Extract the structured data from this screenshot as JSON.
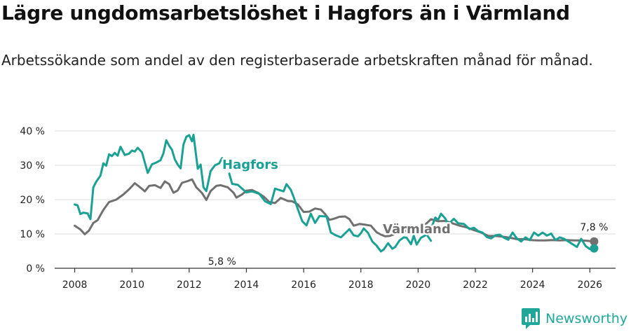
{
  "title": "Lägre ungdomsarbetslöshet i Hagfors än i Värmland",
  "subtitle": "Arbetssökande som andel av den registerbaserade arbetskraften månad för månad.",
  "brand": {
    "name": "Newsworthy",
    "icon": "newsworthy-logo-icon",
    "color": "#1fa89a"
  },
  "chart_data": {
    "type": "line",
    "title": "",
    "xlabel": "",
    "ylabel": "",
    "xlim": [
      2007.3,
      2026.9
    ],
    "ylim": [
      0,
      40
    ],
    "x_ticks": [
      {
        "value": 2008,
        "label": "2008"
      },
      {
        "value": 2010,
        "label": "2010"
      },
      {
        "value": 2012,
        "label": "2012"
      },
      {
        "value": 2014,
        "label": "2014"
      },
      {
        "value": 2016,
        "label": "2016"
      },
      {
        "value": 2018,
        "label": "2018"
      },
      {
        "value": 2020,
        "label": "2020"
      },
      {
        "value": 2022,
        "label": "2022"
      },
      {
        "value": 2024,
        "label": "2024"
      },
      {
        "value": 2026,
        "label": "2026"
      }
    ],
    "y_ticks": [
      {
        "value": 0,
        "label": "0 %"
      },
      {
        "value": 10,
        "label": "10 %"
      },
      {
        "value": 20,
        "label": "20 %"
      },
      {
        "value": 30,
        "label": "30 %"
      },
      {
        "value": 40,
        "label": "40 %"
      }
    ],
    "grid": "horizontal",
    "series": [
      {
        "name": "Värmland",
        "label": "Värmland",
        "color": "#707070",
        "end_label": "7,8 %",
        "end_value": 7.8,
        "points": [
          [
            2008.0,
            12.4
          ],
          [
            2008.2,
            11.3
          ],
          [
            2008.35,
            9.9
          ],
          [
            2008.5,
            11.0
          ],
          [
            2008.65,
            13.2
          ],
          [
            2008.8,
            14.0
          ],
          [
            2009.0,
            17.0
          ],
          [
            2009.2,
            19.3
          ],
          [
            2009.45,
            20.0
          ],
          [
            2009.7,
            21.5
          ],
          [
            2009.9,
            23.0
          ],
          [
            2010.1,
            24.8
          ],
          [
            2010.3,
            23.5
          ],
          [
            2010.45,
            22.4
          ],
          [
            2010.6,
            24.0
          ],
          [
            2010.8,
            24.2
          ],
          [
            2011.0,
            23.4
          ],
          [
            2011.15,
            25.3
          ],
          [
            2011.3,
            24.5
          ],
          [
            2011.45,
            22.0
          ],
          [
            2011.6,
            22.7
          ],
          [
            2011.75,
            24.9
          ],
          [
            2011.95,
            25.4
          ],
          [
            2012.1,
            25.9
          ],
          [
            2012.25,
            23.6
          ],
          [
            2012.45,
            21.9
          ],
          [
            2012.6,
            19.9
          ],
          [
            2012.75,
            22.5
          ],
          [
            2012.95,
            24.0
          ],
          [
            2013.1,
            24.2
          ],
          [
            2013.35,
            23.6
          ],
          [
            2013.55,
            22.0
          ],
          [
            2013.65,
            20.6
          ],
          [
            2013.85,
            21.5
          ],
          [
            2014.0,
            22.6
          ],
          [
            2014.2,
            22.8
          ],
          [
            2014.4,
            22.0
          ],
          [
            2014.6,
            20.9
          ],
          [
            2014.8,
            19.3
          ],
          [
            2015.0,
            19.0
          ],
          [
            2015.2,
            20.5
          ],
          [
            2015.45,
            19.6
          ],
          [
            2015.6,
            19.5
          ],
          [
            2015.8,
            18.6
          ],
          [
            2016.0,
            16.4
          ],
          [
            2016.2,
            16.5
          ],
          [
            2016.4,
            17.4
          ],
          [
            2016.6,
            17.1
          ],
          [
            2016.75,
            15.8
          ],
          [
            2016.9,
            14.1
          ],
          [
            2017.05,
            14.4
          ],
          [
            2017.25,
            15.0
          ],
          [
            2017.45,
            15.1
          ],
          [
            2017.6,
            14.3
          ],
          [
            2017.75,
            12.4
          ],
          [
            2017.95,
            12.9
          ],
          [
            2018.15,
            12.7
          ],
          [
            2018.35,
            12.4
          ],
          [
            2018.55,
            10.5
          ],
          [
            2018.7,
            9.8
          ],
          [
            2018.85,
            9.3
          ],
          [
            2019.0,
            9.4
          ],
          [
            2019.2,
            10.0
          ],
          [
            2019.45,
            10.9
          ],
          [
            2019.7,
            10.9
          ],
          [
            2019.95,
            11.1
          ],
          [
            2020.2,
            12.3
          ],
          [
            2020.45,
            14.3
          ],
          [
            2020.7,
            13.7
          ],
          [
            2020.95,
            13.8
          ],
          [
            2021.2,
            13.1
          ],
          [
            2021.45,
            12.4
          ],
          [
            2021.7,
            11.9
          ],
          [
            2021.95,
            11.1
          ],
          [
            2022.2,
            10.4
          ],
          [
            2022.45,
            9.4
          ],
          [
            2022.7,
            9.4
          ],
          [
            2022.95,
            9.2
          ],
          [
            2023.2,
            8.9
          ],
          [
            2023.45,
            8.5
          ],
          [
            2023.7,
            8.5
          ],
          [
            2023.95,
            8.2
          ],
          [
            2024.2,
            8.1
          ],
          [
            2024.45,
            8.1
          ],
          [
            2024.7,
            8.2
          ],
          [
            2024.95,
            8.1
          ],
          [
            2025.2,
            8.2
          ],
          [
            2025.45,
            8.1
          ],
          [
            2025.7,
            8.1
          ],
          [
            2025.9,
            8.0
          ],
          [
            2026.15,
            7.8
          ]
        ]
      },
      {
        "name": "Hagfors",
        "label": "Hagfors",
        "color": "#1aa193",
        "end_label": "5,8 %",
        "end_value": 5.8,
        "points": [
          [
            2008.0,
            18.6
          ],
          [
            2008.1,
            18.3
          ],
          [
            2008.2,
            15.8
          ],
          [
            2008.3,
            16.2
          ],
          [
            2008.45,
            16.0
          ],
          [
            2008.55,
            14.3
          ],
          [
            2008.65,
            23.6
          ],
          [
            2008.75,
            25.2
          ],
          [
            2008.9,
            27.0
          ],
          [
            2009.0,
            30.6
          ],
          [
            2009.1,
            29.9
          ],
          [
            2009.2,
            33.2
          ],
          [
            2009.3,
            32.7
          ],
          [
            2009.4,
            33.6
          ],
          [
            2009.5,
            32.8
          ],
          [
            2009.6,
            35.4
          ],
          [
            2009.75,
            33.0
          ],
          [
            2009.9,
            33.4
          ],
          [
            2010.0,
            34.3
          ],
          [
            2010.1,
            34.0
          ],
          [
            2010.2,
            35.1
          ],
          [
            2010.35,
            33.8
          ],
          [
            2010.45,
            30.8
          ],
          [
            2010.55,
            27.8
          ],
          [
            2010.7,
            30.3
          ],
          [
            2010.85,
            30.8
          ],
          [
            2011.0,
            31.5
          ],
          [
            2011.1,
            33.5
          ],
          [
            2011.2,
            37.3
          ],
          [
            2011.3,
            35.7
          ],
          [
            2011.4,
            34.5
          ],
          [
            2011.5,
            31.7
          ],
          [
            2011.6,
            30.2
          ],
          [
            2011.7,
            29.1
          ],
          [
            2011.8,
            36.1
          ],
          [
            2011.9,
            38.3
          ],
          [
            2012.0,
            38.8
          ],
          [
            2012.1,
            37.0
          ],
          [
            2012.15,
            38.9
          ],
          [
            2012.3,
            29.0
          ],
          [
            2012.4,
            30.2
          ],
          [
            2012.5,
            23.6
          ],
          [
            2012.6,
            22.5
          ],
          [
            2012.75,
            28.3
          ],
          [
            2012.9,
            30.0
          ],
          [
            2013.05,
            30.6
          ],
          [
            2013.15,
            32.1
          ]
        ]
      },
      {
        "name": "Hagfors",
        "label": "",
        "color": "#1aa193",
        "end_label": "",
        "points": [
          [
            2013.4,
            27.6
          ],
          [
            2013.5,
            24.6
          ],
          [
            2013.7,
            24.3
          ],
          [
            2014.0,
            22.1
          ],
          [
            2014.2,
            22.4
          ],
          [
            2014.45,
            21.7
          ],
          [
            2014.65,
            19.5
          ],
          [
            2014.85,
            18.7
          ],
          [
            2015.0,
            23.2
          ],
          [
            2015.15,
            22.8
          ],
          [
            2015.3,
            22.4
          ],
          [
            2015.4,
            24.5
          ],
          [
            2015.55,
            22.9
          ],
          [
            2015.65,
            20.8
          ],
          [
            2015.8,
            17.2
          ],
          [
            2015.95,
            13.7
          ],
          [
            2016.1,
            12.5
          ],
          [
            2016.25,
            15.9
          ],
          [
            2016.4,
            13.2
          ],
          [
            2016.55,
            15.2
          ],
          [
            2016.8,
            15.1
          ],
          [
            2016.95,
            10.4
          ],
          [
            2017.1,
            9.7
          ],
          [
            2017.3,
            9.0
          ],
          [
            2017.45,
            10.2
          ],
          [
            2017.6,
            11.4
          ],
          [
            2017.75,
            9.6
          ],
          [
            2017.9,
            9.3
          ],
          [
            2018.0,
            10.2
          ],
          [
            2018.1,
            11.6
          ],
          [
            2018.25,
            10.3
          ],
          [
            2018.4,
            7.8
          ],
          [
            2018.55,
            6.6
          ],
          [
            2018.7,
            4.9
          ],
          [
            2018.8,
            5.5
          ],
          [
            2018.95,
            7.3
          ],
          [
            2019.1,
            5.7
          ],
          [
            2019.2,
            6.2
          ],
          [
            2019.35,
            8.1
          ],
          [
            2019.5,
            9.0
          ],
          [
            2019.6,
            8.9
          ],
          [
            2019.75,
            7.0
          ],
          [
            2019.85,
            9.5
          ],
          [
            2019.95,
            6.9
          ],
          [
            2020.1,
            8.9
          ],
          [
            2020.3,
            9.8
          ],
          [
            2020.45,
            8.0
          ]
        ]
      },
      {
        "name": "Hagfors",
        "label": "",
        "color": "#1aa193",
        "end_label": "",
        "points": [
          [
            2020.5,
            12.6
          ],
          [
            2020.6,
            14.8
          ],
          [
            2020.7,
            14.1
          ],
          [
            2020.8,
            15.9
          ],
          [
            2020.95,
            14.5
          ],
          [
            2021.05,
            12.8
          ],
          [
            2021.25,
            14.4
          ],
          [
            2021.4,
            13.1
          ],
          [
            2021.6,
            12.9
          ],
          [
            2021.8,
            11.4
          ],
          [
            2021.95,
            11.8
          ],
          [
            2022.1,
            10.8
          ],
          [
            2022.25,
            10.4
          ],
          [
            2022.4,
            9.1
          ],
          [
            2022.55,
            8.7
          ],
          [
            2022.7,
            9.6
          ],
          [
            2022.85,
            9.8
          ],
          [
            2023.0,
            8.9
          ],
          [
            2023.15,
            8.3
          ],
          [
            2023.3,
            10.4
          ],
          [
            2023.45,
            8.7
          ],
          [
            2023.6,
            7.8
          ],
          [
            2023.75,
            9.0
          ],
          [
            2023.9,
            8.2
          ],
          [
            2024.05,
            10.4
          ],
          [
            2024.2,
            9.5
          ],
          [
            2024.35,
            10.4
          ],
          [
            2024.5,
            9.5
          ],
          [
            2024.65,
            10.1
          ],
          [
            2024.8,
            8.2
          ],
          [
            2024.95,
            9.0
          ],
          [
            2025.1,
            8.6
          ],
          [
            2025.25,
            7.8
          ],
          [
            2025.4,
            7.0
          ],
          [
            2025.55,
            6.2
          ],
          [
            2025.7,
            8.6
          ],
          [
            2025.85,
            6.5
          ],
          [
            2026.0,
            5.6
          ],
          [
            2026.15,
            5.8
          ]
        ]
      }
    ]
  }
}
